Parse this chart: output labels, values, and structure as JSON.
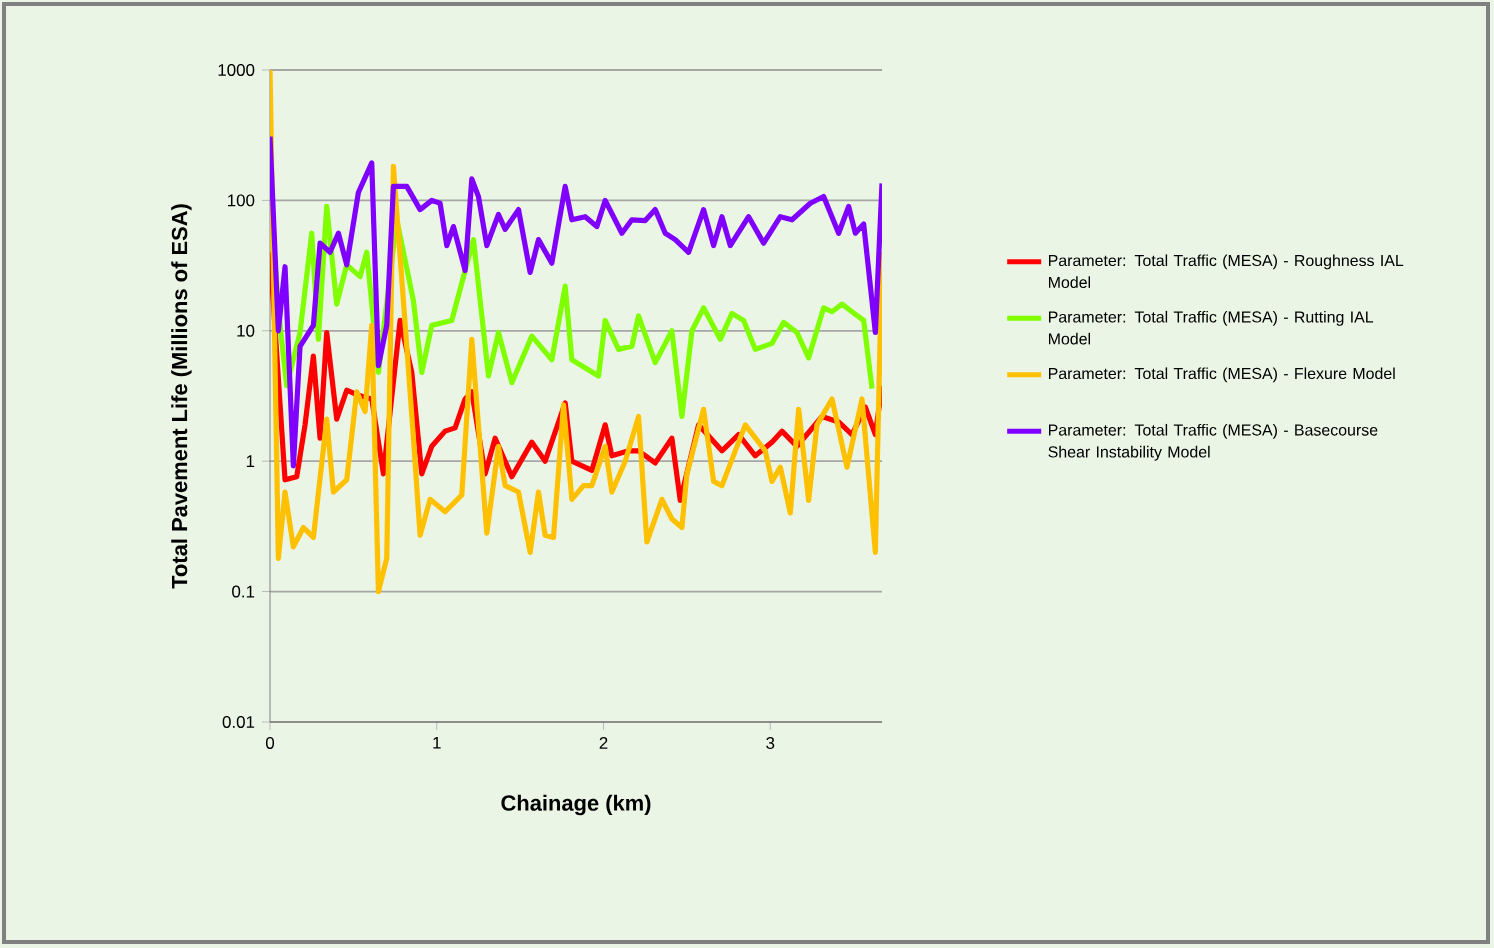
{
  "chart_data": {
    "type": "line",
    "xlabel": "Chainage (km)",
    "ylabel": "Total Pavement Life (Millions of ESA)",
    "log": "y",
    "grid": "y",
    "legend": "right",
    "line_style": "solid",
    "marker": "none",
    "xlim": [
      0,
      3.67
    ],
    "xticks": [
      0,
      1,
      2,
      3
    ],
    "ylim": [
      0.01,
      1000
    ],
    "yticks": [
      0.01,
      0.1,
      1,
      10,
      100,
      1000
    ],
    "series": [
      {
        "name": "Parameter: Total Traffic (MESA) - Roughness IAL Model",
        "color": "#ff0000",
        "x": [
          0,
          0.09,
          0.16,
          0.21,
          0.26,
          0.3,
          0.34,
          0.4,
          0.46,
          0.53,
          0.61,
          0.68,
          0.78,
          0.85,
          0.91,
          0.97,
          1.05,
          1.11,
          1.17,
          1.21,
          1.29,
          1.35,
          1.45,
          1.57,
          1.65,
          1.77,
          1.81,
          1.93,
          2.01,
          2.05,
          2.15,
          2.21,
          2.31,
          2.41,
          2.46,
          2.57,
          2.71,
          2.81,
          2.91,
          3.01,
          3.07,
          3.16,
          3.31,
          3.41,
          3.49,
          3.57,
          3.63,
          3.67
        ],
        "values": [
          40,
          0.72,
          0.76,
          1.9,
          6.4,
          1.5,
          9.7,
          2.1,
          3.5,
          3.2,
          3,
          0.8,
          12,
          4.8,
          0.8,
          1.3,
          1.7,
          1.8,
          3,
          3.4,
          0.8,
          1.5,
          0.76,
          1.4,
          1,
          2.8,
          1,
          0.85,
          1.9,
          1.1,
          1.2,
          1.2,
          0.97,
          1.5,
          0.5,
          1.9,
          1.2,
          1.6,
          1.1,
          1.4,
          1.7,
          1.3,
          2.2,
          2,
          1.6,
          2.6,
          1.6,
          3.8
        ]
      },
      {
        "name": "Parameter: Total Traffic (MESA) - Rutting IAL Model",
        "color": "#80ff00",
        "x": [
          0,
          0.06,
          0.1,
          0.18,
          0.25,
          0.29,
          0.34,
          0.4,
          0.46,
          0.54,
          0.58,
          0.65,
          0.76,
          0.86,
          0.91,
          0.97,
          1.09,
          1.17,
          1.22,
          1.31,
          1.37,
          1.45,
          1.57,
          1.69,
          1.77,
          1.81,
          1.97,
          2.01,
          2.09,
          2.17,
          2.21,
          2.31,
          2.41,
          2.47,
          2.53,
          2.6,
          2.7,
          2.77,
          2.84,
          2.91,
          3.01,
          3.08,
          3.16,
          3.23,
          3.32,
          3.37,
          3.43,
          3.49,
          3.56,
          3.61
        ],
        "values": [
          100,
          11,
          3.8,
          9.7,
          56,
          8.6,
          90,
          16,
          32,
          26,
          40,
          4.8,
          71,
          17,
          4.8,
          11,
          12,
          29,
          50,
          4.5,
          9.7,
          4,
          9.1,
          6,
          22,
          6,
          4.5,
          12,
          7.2,
          7.6,
          13,
          5.7,
          10,
          2.2,
          10,
          15,
          8.6,
          13.6,
          12,
          7.2,
          8,
          11.6,
          9.7,
          6.2,
          15,
          14,
          16,
          14,
          12,
          3.6
        ]
      },
      {
        "name": "Parameter: Total Traffic (MESA) - Flexure Model",
        "color": "#ffc000",
        "x": [
          0,
          0.05,
          0.09,
          0.14,
          0.2,
          0.26,
          0.34,
          0.38,
          0.46,
          0.52,
          0.57,
          0.61,
          0.65,
          0.7,
          0.74,
          0.82,
          0.86,
          0.9,
          0.96,
          1.05,
          1.15,
          1.21,
          1.3,
          1.37,
          1.41,
          1.49,
          1.56,
          1.61,
          1.65,
          1.7,
          1.76,
          1.81,
          1.88,
          1.93,
          2.01,
          2.05,
          2.13,
          2.21,
          2.26,
          2.35,
          2.41,
          2.47,
          2.5,
          2.6,
          2.66,
          2.71,
          2.85,
          2.97,
          3.01,
          3.06,
          3.12,
          3.17,
          3.23,
          3.28,
          3.37,
          3.46,
          3.55,
          3.63,
          3.67
        ],
        "values": [
          1000,
          0.18,
          0.58,
          0.22,
          0.31,
          0.26,
          2.1,
          0.58,
          0.72,
          3.4,
          2.4,
          11,
          0.1,
          0.18,
          182,
          7.6,
          1.5,
          0.27,
          0.51,
          0.41,
          0.55,
          8.6,
          0.28,
          1.3,
          0.65,
          0.58,
          0.2,
          0.58,
          0.27,
          0.26,
          2.7,
          0.51,
          0.65,
          0.65,
          1.3,
          0.58,
          1,
          2.2,
          0.24,
          0.51,
          0.36,
          0.31,
          0.8,
          2.5,
          0.7,
          0.65,
          1.9,
          1.2,
          0.7,
          0.9,
          0.4,
          2.5,
          0.5,
          1.9,
          3,
          0.9,
          3,
          0.2,
          40
        ]
      },
      {
        "name": "Parameter: Total Traffic (MESA) - Basecourse Shear Instability Model",
        "color": "#8000ff",
        "x": [
          0,
          0.05,
          0.09,
          0.14,
          0.18,
          0.26,
          0.3,
          0.36,
          0.41,
          0.46,
          0.53,
          0.61,
          0.65,
          0.7,
          0.74,
          0.82,
          0.9,
          0.97,
          1.02,
          1.06,
          1.1,
          1.17,
          1.21,
          1.25,
          1.3,
          1.37,
          1.41,
          1.49,
          1.56,
          1.61,
          1.69,
          1.77,
          1.81,
          1.89,
          1.96,
          2.01,
          2.11,
          2.17,
          2.25,
          2.31,
          2.37,
          2.43,
          2.51,
          2.6,
          2.66,
          2.71,
          2.76,
          2.87,
          2.96,
          3.06,
          3.13,
          3.24,
          3.32,
          3.41,
          3.47,
          3.51,
          3.56,
          3.63,
          3.67
        ],
        "values": [
          309,
          10,
          31,
          0.92,
          7.6,
          11,
          47,
          40,
          56,
          32,
          115,
          194,
          5.4,
          11,
          128,
          128,
          85,
          100,
          95,
          45,
          63,
          29,
          146,
          107,
          45,
          78,
          60,
          85,
          28,
          50,
          33,
          128,
          71,
          75,
          63,
          100,
          56,
          71,
          70,
          85,
          56,
          50,
          40,
          85,
          45,
          75,
          45,
          75,
          47,
          75,
          71,
          95,
          107,
          56,
          90,
          56,
          66,
          9.7,
          135
        ]
      }
    ]
  }
}
